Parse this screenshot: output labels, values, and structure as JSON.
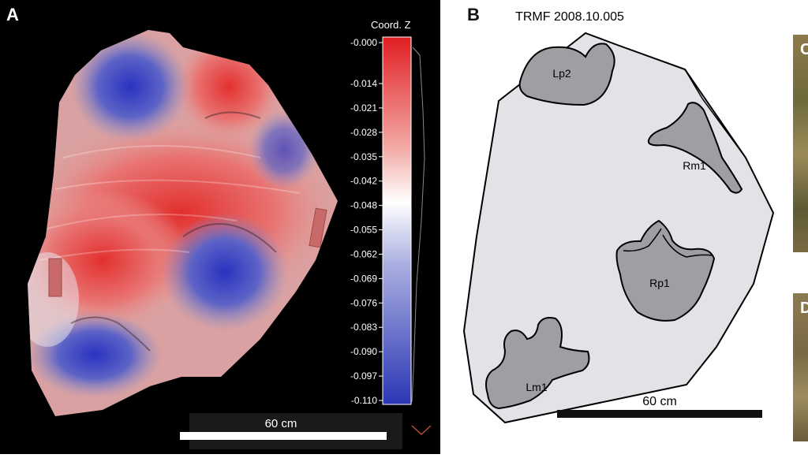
{
  "panel_a": {
    "label": "A",
    "colorbar": {
      "title": "Coord. Z",
      "ticks": [
        "-0.000",
        "-0.014",
        "-0.021",
        "-0.028",
        "-0.035",
        "-0.042",
        "-0.048",
        "-0.055",
        "-0.062",
        "-0.069",
        "-0.076",
        "-0.083",
        "-0.090",
        "-0.097",
        "-0.110"
      ]
    },
    "scale_label": "60 cm",
    "colors": {
      "high": "#e02828",
      "mid": "#ffffff",
      "low": "#2a33b0"
    }
  },
  "panel_b": {
    "label": "B",
    "title": "TRMF 2008.10.005",
    "tracks": [
      "Lp2",
      "Rm1",
      "Rp1",
      "Lm1"
    ],
    "scale_label": "60 cm",
    "colors": {
      "slab": "#e2e3e6",
      "track": "#9e9fa2",
      "outline": "#000000"
    }
  },
  "panel_c": {
    "label": "C"
  },
  "panel_d": {
    "label": "D"
  }
}
